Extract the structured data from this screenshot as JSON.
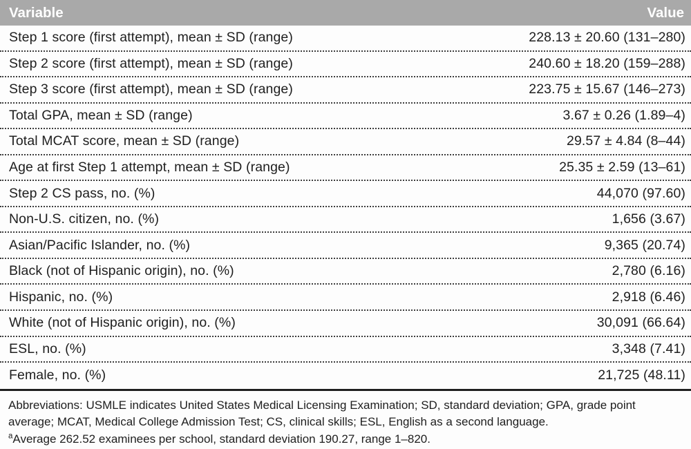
{
  "table": {
    "columns": [
      "Variable",
      "Value"
    ],
    "rows": [
      {
        "variable": "Step 1 score (first attempt), mean ± SD (range)",
        "value": "228.13 ± 20.60 (131–280)"
      },
      {
        "variable": "Step 2 score (first attempt), mean ± SD (range)",
        "value": "240.60 ± 18.20 (159–288)"
      },
      {
        "variable": "Step 3 score (first attempt), mean ± SD (range)",
        "value": "223.75 ± 15.67 (146–273)"
      },
      {
        "variable": "Total GPA, mean ± SD (range)",
        "value": "3.67 ± 0.26 (1.89–4)"
      },
      {
        "variable": "Total MCAT score, mean ± SD (range)",
        "value": "29.57 ± 4.84 (8–44)"
      },
      {
        "variable": "Age at first Step 1 attempt, mean ± SD (range)",
        "value": "25.35 ± 2.59 (13–61)"
      },
      {
        "variable": "Step 2 CS pass, no. (%)",
        "value": "44,070 (97.60)"
      },
      {
        "variable": "Non-U.S. citizen, no. (%)",
        "value": "1,656 (3.67)"
      },
      {
        "variable": "Asian/Pacific Islander, no. (%)",
        "value": "9,365 (20.74)"
      },
      {
        "variable": "Black (not of Hispanic origin), no. (%)",
        "value": "2,780 (6.16)"
      },
      {
        "variable": "Hispanic, no. (%)",
        "value": "2,918 (6.46)"
      },
      {
        "variable": "White (not of Hispanic origin), no. (%)",
        "value": "30,091 (66.64)"
      },
      {
        "variable": "ESL, no. (%)",
        "value": "3,348 (7.41)"
      },
      {
        "variable": "Female, no. (%)",
        "value": "21,725 (48.11)"
      }
    ]
  },
  "footer": {
    "abbreviations": "Abbreviations: USMLE indicates United States Medical Licensing Examination; SD, standard deviation; GPA, grade point average; MCAT, Medical College Admission Test; CS, clinical skills; ESL, English as a second language.",
    "footnote_marker": "a",
    "footnote_text": "Average 262.52 examinees per school, standard deviation 190.27, range 1–820."
  },
  "colors": {
    "header_bg": "#a9a9a9",
    "header_text": "#ffffff",
    "body_text": "#1e1e1e",
    "dotted_rule": "#3c3c3c",
    "bottom_rule": "#1f1f1f"
  }
}
